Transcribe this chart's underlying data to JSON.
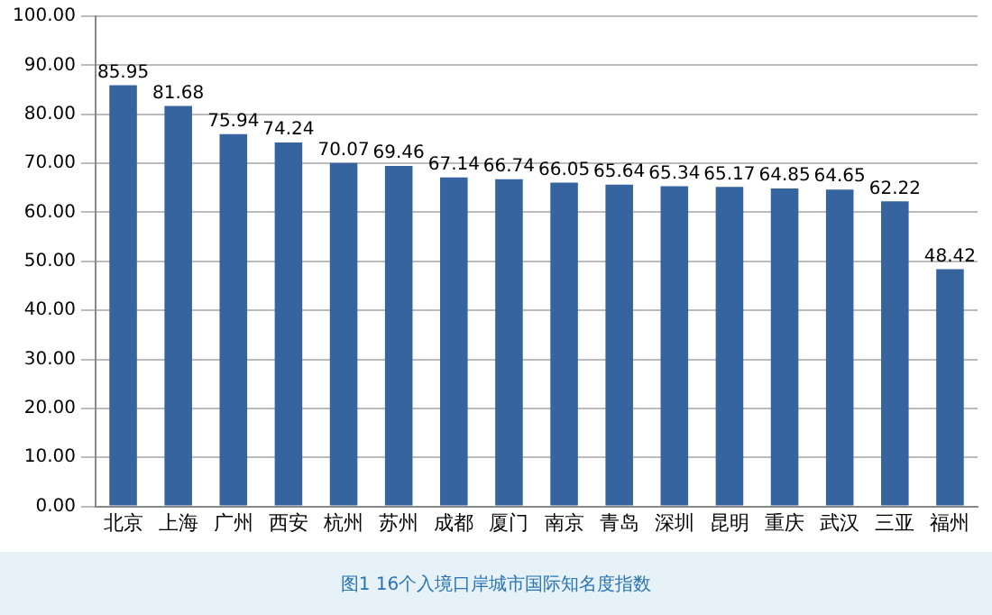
{
  "chart_data": {
    "type": "bar",
    "categories": [
      "北京",
      "上海",
      "广州",
      "西安",
      "杭州",
      "苏州",
      "成都",
      "厦门",
      "南京",
      "青岛",
      "深圳",
      "昆明",
      "重庆",
      "武汉",
      "三亚",
      "福州"
    ],
    "values": [
      85.95,
      81.68,
      75.94,
      74.24,
      70.07,
      69.46,
      67.14,
      66.74,
      66.05,
      65.64,
      65.34,
      65.17,
      64.85,
      64.65,
      62.22,
      48.42
    ],
    "color": "#36649e",
    "ylim": [
      0,
      100
    ],
    "yticks": [
      {
        "value": 0,
        "label": "0.00"
      },
      {
        "value": 10,
        "label": "10.00"
      },
      {
        "value": 20,
        "label": "20.00"
      },
      {
        "value": 30,
        "label": "30.00"
      },
      {
        "value": 40,
        "label": "40.00"
      },
      {
        "value": 50,
        "label": "50.00"
      },
      {
        "value": 60,
        "label": "60.00"
      },
      {
        "value": 70,
        "label": "70.00"
      },
      {
        "value": 80,
        "label": "80.00"
      },
      {
        "value": 90,
        "label": "90.00"
      },
      {
        "value": 100,
        "label": "100.00"
      }
    ],
    "grid": "y",
    "data_labels": true,
    "annotations": [
      "图1 16个入境口岸城市国际知名度指数"
    ]
  }
}
